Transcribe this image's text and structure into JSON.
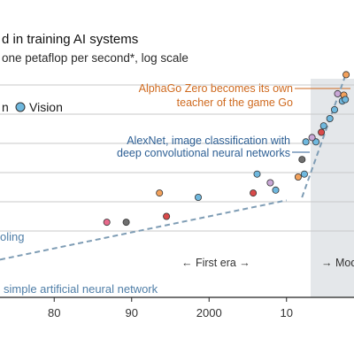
{
  "chart_data": {
    "type": "scatter",
    "title": "d in training AI systems",
    "subtitle": "one petaflop per second*, log scale",
    "x_ticks": [
      "80",
      "90",
      "2000",
      "10"
    ],
    "x_tick_values": [
      1980,
      1990,
      2000,
      2010
    ],
    "xlim": [
      1973,
      2018
    ],
    "legend": [
      {
        "label": "n",
        "color": "#e8698b"
      },
      {
        "label": "Vision",
        "color": "#6fb8de"
      }
    ],
    "eras": [
      {
        "label": "← First era →",
        "from": 1973,
        "to": 2012.3
      },
      {
        "label": "→ Mod",
        "from": 2012.3,
        "to": 2018,
        "shaded": true
      }
    ],
    "trend_lines": [
      {
        "name": "first era",
        "x": [
          1973,
          2010
        ],
        "y": [
          2.02,
          4.05
        ]
      },
      {
        "name": "modern era",
        "x": [
          2012,
          2017.5
        ],
        "y": [
          4.15,
          8.25
        ]
      }
    ],
    "trend_labels": [
      "oling",
      "simple artificial neural network"
    ],
    "annotations": [
      {
        "text": [
          "AlphaGo Zero becomes its own",
          "teacher of the game Go"
        ],
        "color": "#cf6a1f",
        "x": 2017.5,
        "y": 8.3
      },
      {
        "text": [
          "AlexNet, image classification with",
          "deep convolutional neural networks"
        ],
        "color": "#2d5f94",
        "x": 2012.2,
        "y": 5.78
      }
    ],
    "series": [
      {
        "color": "#e8698b",
        "points": [
          [
            1986.8,
            3.3
          ]
        ]
      },
      {
        "color": "#6f6f6f",
        "points": [
          [
            1989.3,
            3.3
          ],
          [
            2012.0,
            5.45
          ]
        ]
      },
      {
        "color": "#d94a4a",
        "points": [
          [
            1994.5,
            3.5
          ],
          [
            2005.7,
            4.3
          ],
          [
            2014.5,
            6.38
          ]
        ]
      },
      {
        "color": "#f2a15c",
        "points": [
          [
            1993.6,
            4.3
          ],
          [
            2011.5,
            4.85
          ],
          [
            2017.7,
            8.35
          ],
          [
            2017.4,
            7.65
          ]
        ]
      },
      {
        "color": "#6fb8de",
        "points": [
          [
            1998.6,
            4.15
          ],
          [
            2006.2,
            4.95
          ],
          [
            2008.6,
            4.4
          ],
          [
            2012.3,
            4.95
          ],
          [
            2012.5,
            6.05
          ],
          [
            2013.8,
            6.05
          ],
          [
            2014.8,
            6.6
          ],
          [
            2015.6,
            6.85
          ],
          [
            2016.2,
            7.15
          ],
          [
            2017.2,
            7.45
          ],
          [
            2017.6,
            7.5
          ]
        ]
      },
      {
        "color": "#c9a7d6",
        "points": [
          [
            2007.9,
            4.65
          ],
          [
            2013.3,
            6.2
          ],
          [
            2016.6,
            7.7
          ]
        ]
      }
    ]
  }
}
